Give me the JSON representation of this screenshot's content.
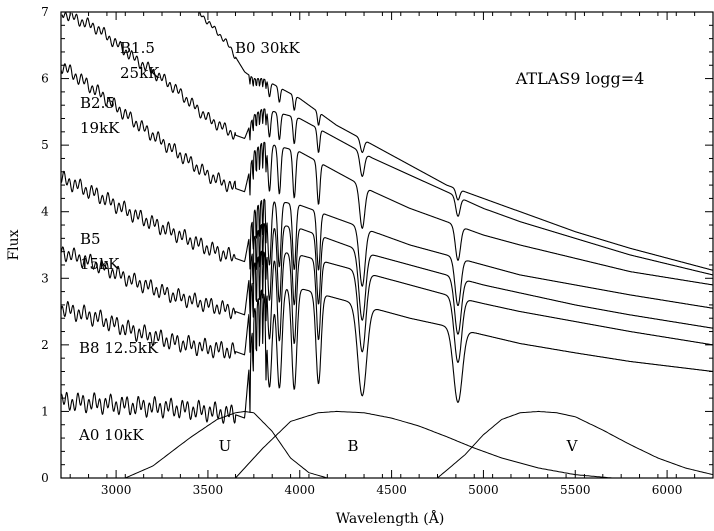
{
  "chart_data": {
    "type": "line",
    "title": "ATLAS9 logg=4",
    "xlabel": "Wavelength (Å)",
    "ylabel": "Flux",
    "xlim": [
      2700,
      6250
    ],
    "ylim": [
      0,
      7
    ],
    "xticks": [
      3000,
      3500,
      4000,
      4500,
      5000,
      5500,
      6000
    ],
    "yticks": [
      0,
      1,
      2,
      3,
      4,
      5,
      6,
      7
    ],
    "grid": false,
    "legend": "none",
    "balmer_lines": [
      3835,
      3889,
      3970,
      4102,
      4340,
      4861
    ],
    "series": [
      {
        "name": "B0 30kK",
        "x": [
          3450,
          3600,
          3700,
          3750,
          3800,
          4000,
          4200,
          4400,
          4600,
          4800,
          5000,
          5200,
          5500,
          5800,
          6250
        ],
        "y": [
          7.0,
          6.55,
          6.1,
          6.0,
          6.0,
          5.7,
          5.3,
          5.0,
          4.7,
          4.4,
          4.2,
          4.0,
          3.7,
          3.45,
          3.12
        ],
        "jump": 0.05,
        "line_depth": 0.25,
        "line_width": 10,
        "serration": 0.03
      },
      {
        "name": "B1.5 25kK",
        "x": [
          2700,
          2900,
          3100,
          3300,
          3500,
          3650,
          3700,
          3750,
          3800,
          4000,
          4200,
          4400,
          4600,
          4800,
          5000,
          5200,
          5500,
          5800,
          6250
        ],
        "y": [
          7.0,
          6.75,
          6.3,
          5.9,
          5.4,
          5.15,
          5.1,
          5.45,
          5.55,
          5.4,
          5.1,
          4.8,
          4.55,
          4.3,
          4.05,
          3.85,
          3.6,
          3.35,
          3.05
        ],
        "jump": 0.35,
        "line_depth": 0.45,
        "line_width": 12,
        "serration": 0.06
      },
      {
        "name": "B2.5 19kK",
        "x": [
          2700,
          2900,
          3100,
          3300,
          3500,
          3650,
          3700,
          3750,
          3800,
          4000,
          4200,
          4400,
          4600,
          4800,
          5000,
          5200,
          5500,
          5800,
          6250
        ],
        "y": [
          6.2,
          5.8,
          5.35,
          4.95,
          4.55,
          4.35,
          4.3,
          4.9,
          5.05,
          4.9,
          4.6,
          4.3,
          4.05,
          3.85,
          3.65,
          3.5,
          3.3,
          3.1,
          2.9
        ],
        "jump": 0.6,
        "line_depth": 0.8,
        "line_width": 14,
        "serration": 0.07
      },
      {
        "name": "B5 15kK",
        "x": [
          2700,
          2900,
          3100,
          3300,
          3500,
          3650,
          3700,
          3750,
          3800,
          4000,
          4200,
          4400,
          4600,
          4800,
          5000,
          5200,
          5500,
          5800,
          6250
        ],
        "y": [
          4.5,
          4.25,
          3.95,
          3.7,
          3.45,
          3.3,
          3.25,
          4.0,
          4.2,
          4.1,
          3.9,
          3.7,
          3.5,
          3.35,
          3.2,
          3.05,
          2.9,
          2.75,
          2.55
        ],
        "jump": 0.75,
        "line_depth": 1.1,
        "line_width": 16,
        "serration": 0.08
      },
      {
        "name": "",
        "x": [
          2700,
          2900,
          3100,
          3300,
          3500,
          3650,
          3700,
          3750,
          3800,
          4000,
          4200,
          4400,
          4600,
          4800,
          5000,
          5200,
          5500,
          5800,
          6250
        ],
        "y": [
          3.4,
          3.2,
          2.95,
          2.75,
          2.6,
          2.5,
          2.45,
          3.6,
          3.85,
          3.75,
          3.55,
          3.35,
          3.2,
          3.05,
          2.9,
          2.78,
          2.6,
          2.45,
          2.25
        ],
        "jump": 1.1,
        "line_depth": 1.3,
        "line_width": 18,
        "serration": 0.08
      },
      {
        "name": "B8 12.5kK",
        "x": [
          2700,
          2900,
          3100,
          3300,
          3500,
          3650,
          3700,
          3750,
          3800,
          4000,
          4200,
          4400,
          4600,
          4800,
          5000,
          5200,
          5500,
          5800,
          6250
        ],
        "y": [
          2.55,
          2.4,
          2.2,
          2.05,
          1.95,
          1.9,
          1.85,
          3.2,
          3.45,
          3.35,
          3.2,
          3.05,
          2.9,
          2.75,
          2.62,
          2.5,
          2.35,
          2.2,
          2.0
        ],
        "jump": 1.3,
        "line_depth": 1.5,
        "line_width": 20,
        "serration": 0.09
      },
      {
        "name": "A0 10kK",
        "x": [
          2700,
          2900,
          3100,
          3300,
          3500,
          3650,
          3700,
          3750,
          3800,
          4000,
          4200,
          4400,
          4600,
          4800,
          5000,
          5200,
          5500,
          5800,
          6250
        ],
        "y": [
          1.15,
          1.12,
          1.08,
          1.05,
          1.0,
          0.95,
          0.9,
          2.5,
          2.9,
          2.85,
          2.7,
          2.55,
          2.4,
          2.28,
          2.15,
          2.02,
          1.88,
          1.75,
          1.6
        ],
        "jump": 1.6,
        "line_depth": 1.7,
        "line_width": 24,
        "serration": 0.1
      }
    ],
    "bands": [
      {
        "name": "U",
        "x": [
          3050,
          3200,
          3400,
          3550,
          3650,
          3700,
          3750,
          3850,
          3950,
          4050,
          4150
        ],
        "y": [
          0.0,
          0.18,
          0.6,
          0.88,
          0.98,
          1.0,
          0.98,
          0.7,
          0.3,
          0.08,
          0.0
        ]
      },
      {
        "name": "B",
        "x": [
          3650,
          3800,
          3950,
          4100,
          4200,
          4350,
          4500,
          4650,
          4800,
          4950,
          5100,
          5300,
          5500,
          5700
        ],
        "y": [
          0.0,
          0.45,
          0.85,
          0.98,
          1.0,
          0.98,
          0.9,
          0.78,
          0.62,
          0.45,
          0.3,
          0.15,
          0.05,
          0.0
        ]
      },
      {
        "name": "V",
        "x": [
          4750,
          4900,
          5000,
          5100,
          5200,
          5300,
          5400,
          5500,
          5650,
          5800,
          5950,
          6100,
          6250
        ],
        "y": [
          0.0,
          0.35,
          0.65,
          0.88,
          0.98,
          1.0,
          0.98,
          0.92,
          0.72,
          0.5,
          0.3,
          0.15,
          0.05
        ]
      }
    ],
    "series_labels": [
      {
        "series": "B0 30kK",
        "lines": [
          "B0  30kK"
        ]
      },
      {
        "series": "B1.5 25kK",
        "lines": [
          "B1.5",
          "25kK"
        ]
      },
      {
        "series": "B2.5 19kK",
        "lines": [
          "B2.5",
          "19kK"
        ]
      },
      {
        "series": "B5 15kK",
        "lines": [
          "B5",
          "15kK"
        ]
      },
      {
        "series": "B8 12.5kK",
        "lines": [
          "B8  12.5kK"
        ]
      },
      {
        "series": "A0 10kK",
        "lines": [
          "A0  10kK"
        ]
      }
    ]
  }
}
